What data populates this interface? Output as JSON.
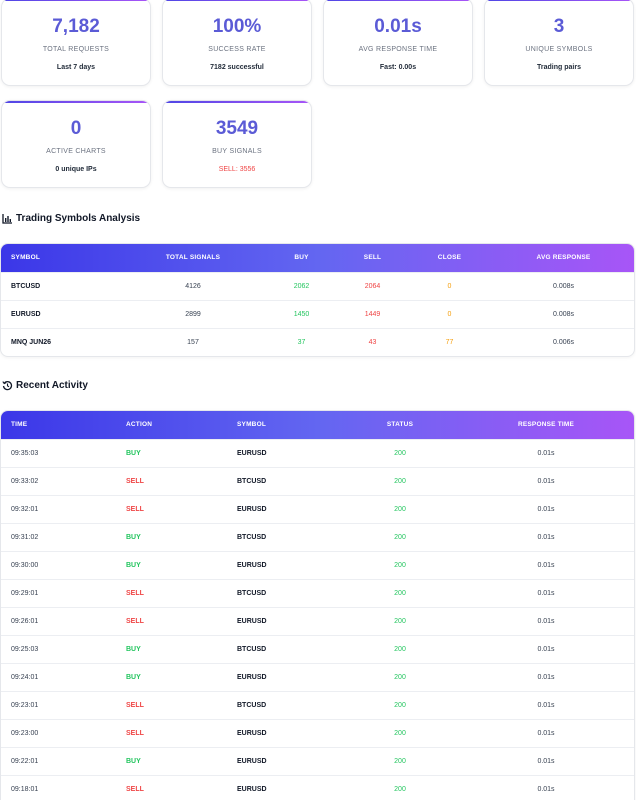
{
  "stats": [
    {
      "value": "7,182",
      "label": "TOTAL REQUESTS",
      "sub": "Last 7 days"
    },
    {
      "value": "100%",
      "label": "SUCCESS RATE",
      "sub": "7182 successful"
    },
    {
      "value": "0.01s",
      "label": "AVG RESPONSE TIME",
      "sub": "Fast: 0.00s"
    },
    {
      "value": "3",
      "label": "UNIQUE SYMBOLS",
      "sub": "Trading pairs"
    },
    {
      "value": "0",
      "label": "ACTIVE CHARTS",
      "sub": "0 unique IPs"
    },
    {
      "value": "3549",
      "label": "BUY SIGNALS",
      "sub": "SELL: 3556"
    }
  ],
  "symbols_section": {
    "title": "Trading Symbols Analysis",
    "columns": [
      "SYMBOL",
      "TOTAL SIGNALS",
      "BUY",
      "SELL",
      "CLOSE",
      "AVG RESPONSE"
    ],
    "rows": [
      {
        "symbol": "BTCUSD",
        "total": "4126",
        "buy": "2062",
        "sell": "2064",
        "close": "0",
        "avg": "0.008s"
      },
      {
        "symbol": "EURUSD",
        "total": "2899",
        "buy": "1450",
        "sell": "1449",
        "close": "0",
        "avg": "0.008s"
      },
      {
        "symbol": "MNQ JUN26",
        "total": "157",
        "buy": "37",
        "sell": "43",
        "close": "77",
        "avg": "0.006s"
      }
    ]
  },
  "activity_section": {
    "title": "Recent Activity",
    "columns": [
      "TIME",
      "ACTION",
      "SYMBOL",
      "STATUS",
      "RESPONSE TIME"
    ],
    "rows": [
      {
        "time": "09:35:03",
        "action": "BUY",
        "symbol": "EURUSD",
        "status": "200",
        "response": "0.01s"
      },
      {
        "time": "09:33:02",
        "action": "SELL",
        "symbol": "BTCUSD",
        "status": "200",
        "response": "0.01s"
      },
      {
        "time": "09:32:01",
        "action": "SELL",
        "symbol": "EURUSD",
        "status": "200",
        "response": "0.01s"
      },
      {
        "time": "09:31:02",
        "action": "BUY",
        "symbol": "BTCUSD",
        "status": "200",
        "response": "0.01s"
      },
      {
        "time": "09:30:00",
        "action": "BUY",
        "symbol": "EURUSD",
        "status": "200",
        "response": "0.01s"
      },
      {
        "time": "09:29:01",
        "action": "SELL",
        "symbol": "BTCUSD",
        "status": "200",
        "response": "0.01s"
      },
      {
        "time": "09:26:01",
        "action": "SELL",
        "symbol": "EURUSD",
        "status": "200",
        "response": "0.01s"
      },
      {
        "time": "09:25:03",
        "action": "BUY",
        "symbol": "BTCUSD",
        "status": "200",
        "response": "0.01s"
      },
      {
        "time": "09:24:01",
        "action": "BUY",
        "symbol": "EURUSD",
        "status": "200",
        "response": "0.01s"
      },
      {
        "time": "09:23:01",
        "action": "SELL",
        "symbol": "BTCUSD",
        "status": "200",
        "response": "0.01s"
      },
      {
        "time": "09:23:00",
        "action": "SELL",
        "symbol": "EURUSD",
        "status": "200",
        "response": "0.01s"
      },
      {
        "time": "09:22:01",
        "action": "BUY",
        "symbol": "EURUSD",
        "status": "200",
        "response": "0.01s"
      },
      {
        "time": "09:18:01",
        "action": "SELL",
        "symbol": "EURUSD",
        "status": "200",
        "response": "0.01s"
      }
    ]
  },
  "colors": {
    "accent": "#5b5bd6",
    "buy": "#22c55e",
    "sell": "#ef4444",
    "close": "#f59e0b",
    "header_gradient_start": "#3b37e8",
    "header_gradient_end": "#a855f7"
  }
}
